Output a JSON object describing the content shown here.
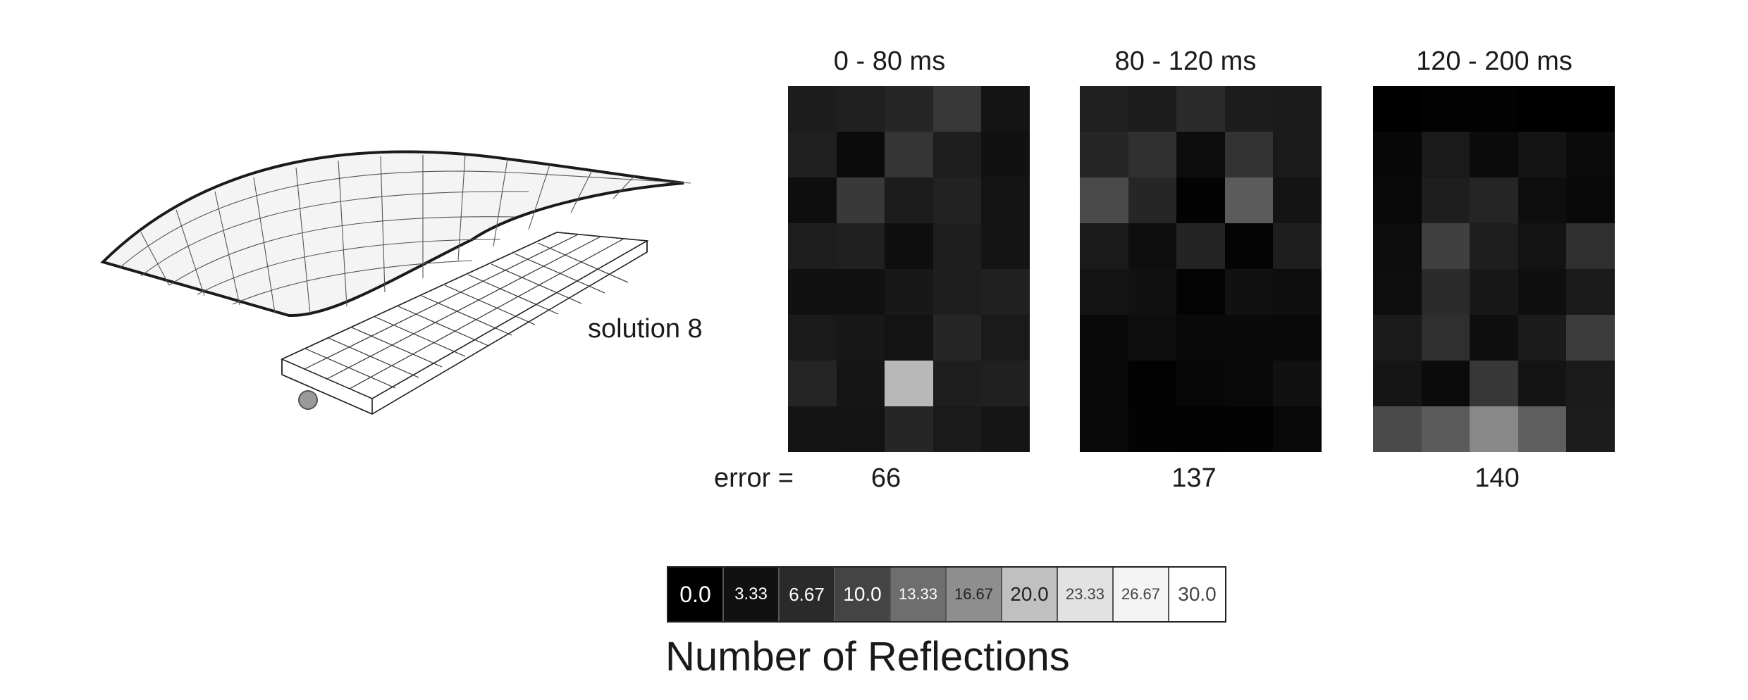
{
  "diagram": {
    "label": "solution 8"
  },
  "error_label": "error =",
  "panels": [
    {
      "title": "0 - 80 ms",
      "error": "66",
      "grid": [
        [
          3.3,
          3.8,
          4.5,
          6.6,
          2.3
        ],
        [
          3.8,
          1.3,
          6.2,
          3.5,
          2.0
        ],
        [
          1.7,
          6.7,
          3.3,
          4.0,
          2.3
        ],
        [
          3.5,
          3.8,
          1.8,
          3.5,
          2.3
        ],
        [
          2.0,
          2.0,
          2.8,
          3.5,
          3.8
        ],
        [
          3.0,
          2.8,
          2.2,
          4.5,
          3.0
        ],
        [
          4.3,
          2.5,
          21.7,
          3.5,
          3.8
        ],
        [
          2.3,
          2.2,
          4.5,
          3.0,
          2.5
        ]
      ]
    },
    {
      "title": "80 - 120 ms",
      "error": "137",
      "grid": [
        [
          3.8,
          3.3,
          5.0,
          3.3,
          3.0
        ],
        [
          4.5,
          5.7,
          1.5,
          6.0,
          3.0
        ],
        [
          8.7,
          4.5,
          0.3,
          10.7,
          2.3
        ],
        [
          3.0,
          1.7,
          4.2,
          0.5,
          3.5
        ],
        [
          2.2,
          2.0,
          0.5,
          2.0,
          1.7
        ],
        [
          1.2,
          1.7,
          1.0,
          1.2,
          1.0
        ],
        [
          1.2,
          0.2,
          0.8,
          1.0,
          2.0
        ],
        [
          1.0,
          0.3,
          0.2,
          0.3,
          1.0
        ]
      ]
    },
    {
      "title": "120 - 200 ms",
      "error": "140",
      "grid": [
        [
          0.0,
          0.2,
          0.2,
          0.0,
          0.0
        ],
        [
          0.8,
          3.0,
          1.3,
          2.3,
          1.3
        ],
        [
          1.0,
          3.5,
          4.3,
          1.7,
          1.0
        ],
        [
          1.5,
          7.5,
          3.5,
          2.2,
          5.5
        ],
        [
          1.7,
          5.0,
          2.8,
          1.8,
          3.0
        ],
        [
          3.2,
          5.5,
          1.8,
          3.2,
          7.0
        ],
        [
          2.5,
          1.3,
          6.5,
          2.3,
          3.0
        ],
        [
          8.7,
          10.7,
          16.0,
          11.0,
          3.3
        ]
      ]
    }
  ],
  "legend": {
    "title": "Number of Reflections",
    "steps": [
      "0.0",
      "3.33",
      "6.67",
      "10.0",
      "13.33",
      "16.67",
      "20.0",
      "23.33",
      "26.67",
      "30.0"
    ],
    "colors": [
      "#000000",
      "#111111",
      "#2a2a2a",
      "#444444",
      "#6e6e6e",
      "#8e8e8e",
      "#c0c0c0",
      "#e2e2e2",
      "#f4f4f4",
      "#ffffff"
    ],
    "text_colors": [
      "#ffffff",
      "#ffffff",
      "#ffffff",
      "#ffffff",
      "#ffffff",
      "#222222",
      "#222222",
      "#444444",
      "#444444",
      "#444444"
    ],
    "max": 30
  }
}
